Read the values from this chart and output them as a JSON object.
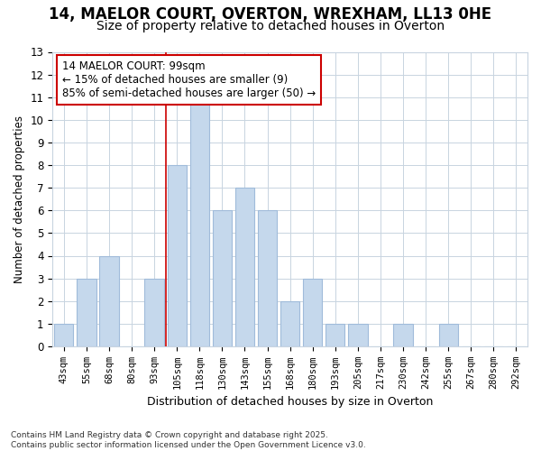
{
  "title_line1": "14, MAELOR COURT, OVERTON, WREXHAM, LL13 0HE",
  "title_line2": "Size of property relative to detached houses in Overton",
  "xlabel": "Distribution of detached houses by size in Overton",
  "ylabel": "Number of detached properties",
  "categories": [
    "43sqm",
    "55sqm",
    "68sqm",
    "80sqm",
    "93sqm",
    "105sqm",
    "118sqm",
    "130sqm",
    "143sqm",
    "155sqm",
    "168sqm",
    "180sqm",
    "193sqm",
    "205sqm",
    "217sqm",
    "230sqm",
    "242sqm",
    "255sqm",
    "267sqm",
    "280sqm",
    "292sqm"
  ],
  "values": [
    1,
    3,
    4,
    0,
    3,
    8,
    11,
    6,
    7,
    6,
    2,
    3,
    1,
    1,
    0,
    1,
    0,
    1,
    0,
    0,
    0
  ],
  "bar_color": "#c5d8ec",
  "bar_edgecolor": "#a0bbda",
  "annotation_box_color": "#cc0000",
  "annotation_text": "14 MAELOR COURT: 99sqm\n← 15% of detached houses are smaller (9)\n85% of semi-detached houses are larger (50) →",
  "grid_color": "#c8d4e0",
  "background_color": "#ffffff",
  "plot_bg_color": "#ffffff",
  "footer_line1": "Contains HM Land Registry data © Crown copyright and database right 2025.",
  "footer_line2": "Contains public sector information licensed under the Open Government Licence v3.0.",
  "ylim": [
    0,
    13
  ],
  "yticks": [
    0,
    1,
    2,
    3,
    4,
    5,
    6,
    7,
    8,
    9,
    10,
    11,
    12,
    13
  ],
  "vline_x": 4.5,
  "title_fontsize": 12,
  "subtitle_fontsize": 10,
  "annotation_fontsize": 8.5
}
